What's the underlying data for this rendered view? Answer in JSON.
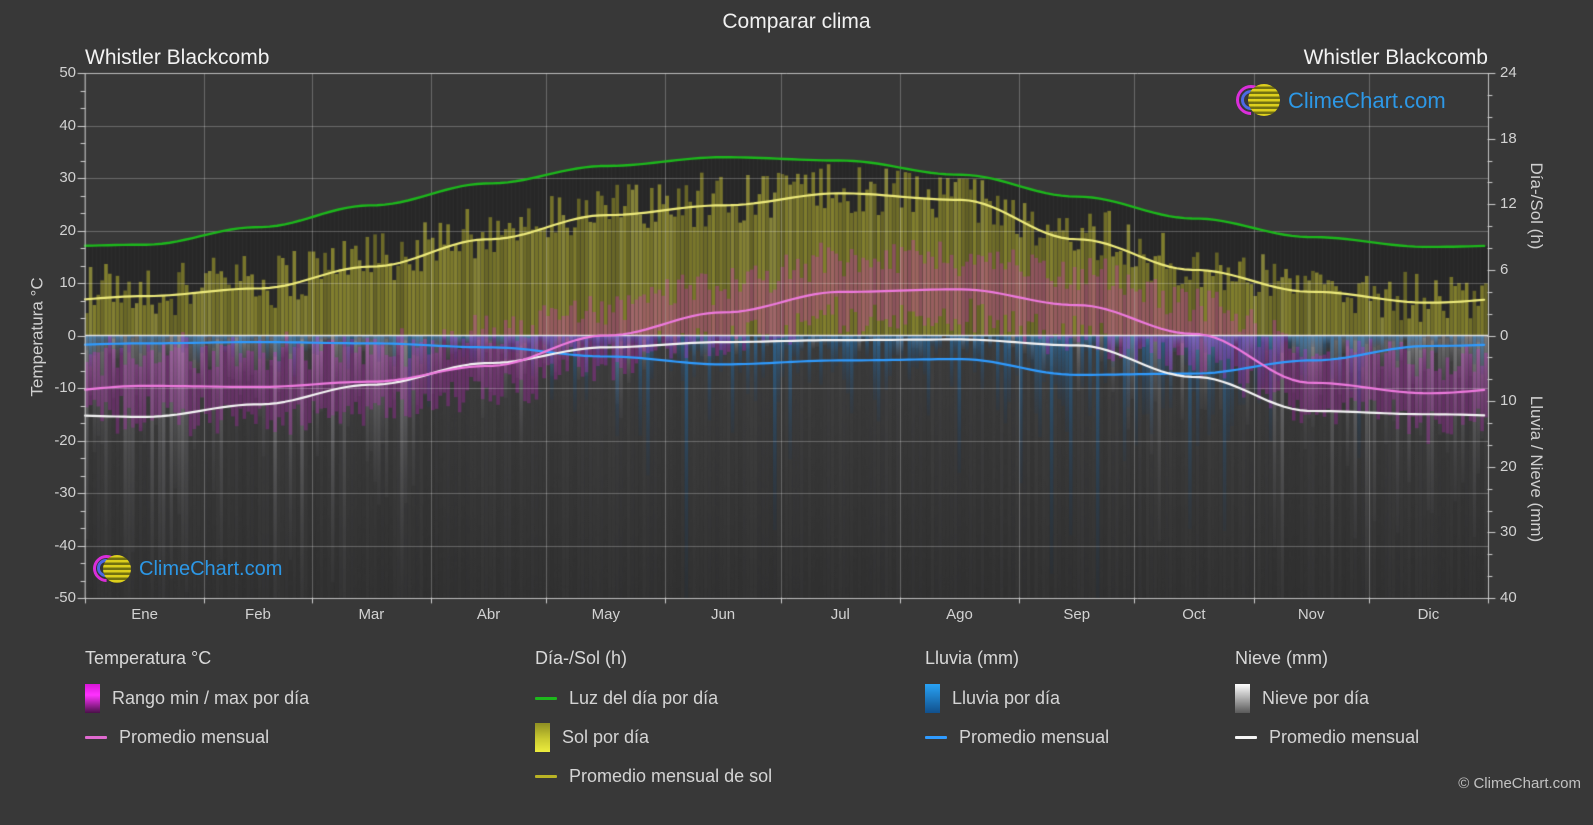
{
  "title": "Comparar clima",
  "station_left": "Whistler Blackcomb",
  "station_right": "Whistler Blackcomb",
  "watermark_text": "ClimeChart.com",
  "copyright": "© ClimeChart.com",
  "colors": {
    "background": "#383838",
    "watermark_blue": "#2d9df0",
    "daylight_line": "#1db81c",
    "sun_avg_line": "#eeeb7c",
    "legend_sun_line": "#b9b325",
    "temp_avg_line": "#ee7ade",
    "legend_temp_line": "#e06ad0",
    "rain_avg_line": "#2f9bff",
    "snow_avg_line": "#f5f5f5",
    "sun_bar": "#a0a030",
    "temp_bar": "#e81ce8",
    "rain_bar": "#1e82cd",
    "snow_bar": "#c8c8cd",
    "grid": "rgba(255,255,255,0.25)",
    "axis_text": "#d2d2d2"
  },
  "axes": {
    "left": {
      "label": "Temperatura °C",
      "ticks": [
        50,
        40,
        30,
        20,
        10,
        0,
        -10,
        -20,
        -30,
        -40,
        -50
      ],
      "range": [
        -50,
        50
      ]
    },
    "right_top": {
      "label": "Día-/Sol (h)",
      "ticks": [
        24,
        18,
        12,
        6,
        0
      ],
      "range": [
        0,
        24
      ]
    },
    "right_bottom": {
      "label": "Lluvia / Nieve (mm)",
      "ticks": [
        0,
        10,
        20,
        30,
        40
      ],
      "range": [
        0,
        40
      ]
    }
  },
  "legend": {
    "groups": [
      {
        "title": "Temperatura °C",
        "items": [
          {
            "swatch": "gradient-magenta",
            "label": "Rango min / max por día"
          },
          {
            "swatch": "line-magenta",
            "label": "Promedio mensual"
          }
        ]
      },
      {
        "title": "Día-/Sol (h)",
        "items": [
          {
            "swatch": "line-green",
            "label": "Luz del día por día"
          },
          {
            "swatch": "gradient-sun",
            "label": "Sol por día"
          },
          {
            "swatch": "line-olive",
            "label": "Promedio mensual de sol"
          }
        ]
      },
      {
        "title": "Lluvia (mm)",
        "items": [
          {
            "swatch": "gradient-rain",
            "label": "Lluvia por día"
          },
          {
            "swatch": "line-blue",
            "label": "Promedio mensual"
          }
        ]
      },
      {
        "title": "Nieve (mm)",
        "items": [
          {
            "swatch": "gradient-snow",
            "label": "Nieve por día"
          },
          {
            "swatch": "line-white",
            "label": "Promedio mensual"
          }
        ]
      }
    ]
  },
  "chart_data": {
    "type": "area",
    "title": "Comparar clima",
    "location": "Whistler Blackcomb",
    "months": [
      "Ene",
      "Feb",
      "Mar",
      "Abr",
      "May",
      "Jun",
      "Jul",
      "Ago",
      "Sep",
      "Oct",
      "Nov",
      "Dic"
    ],
    "month_days": [
      31,
      28,
      31,
      30,
      31,
      30,
      31,
      31,
      30,
      31,
      30,
      31
    ],
    "axis_ranges": {
      "temperature_c": [
        -50,
        50
      ],
      "day_sun_h": [
        0,
        24
      ],
      "rain_snow_mm": [
        0,
        40
      ],
      "mm_axis_inverted": true
    },
    "series": [
      {
        "name": "daylight_hours_daily",
        "unit": "h",
        "style": "green-line",
        "values": [
          8.3,
          9.9,
          11.9,
          13.9,
          15.5,
          16.3,
          16.0,
          14.7,
          12.7,
          10.7,
          9.0,
          8.1
        ]
      },
      {
        "name": "sunshine_monthly_avg",
        "unit": "h",
        "style": "yellow-line",
        "values": [
          3.6,
          4.3,
          6.3,
          8.8,
          11.0,
          11.9,
          13.0,
          12.4,
          8.8,
          6.0,
          4.0,
          3.0
        ]
      },
      {
        "name": "temp_monthly_avg",
        "unit": "°C",
        "style": "magenta-line",
        "values": [
          -9.6,
          -9.8,
          -8.8,
          -5.8,
          0.0,
          4.4,
          8.3,
          8.8,
          5.8,
          0.3,
          -9.0,
          -11.0
        ]
      },
      {
        "name": "temp_daily_min",
        "unit": "°C",
        "style": "magenta-band-low",
        "values": [
          -15.0,
          -16.0,
          -14.5,
          -11.0,
          -5.0,
          -0.5,
          3.5,
          3.5,
          0.0,
          -5.0,
          -13.5,
          -16.5
        ]
      },
      {
        "name": "temp_daily_max",
        "unit": "°C",
        "style": "magenta-band-high",
        "values": [
          -3.5,
          -3.5,
          -2.5,
          0.5,
          5.5,
          10.0,
          14.5,
          15.0,
          11.5,
          6.0,
          -2.5,
          -5.0
        ]
      },
      {
        "name": "rain_monthly_avg",
        "unit": "mm",
        "style": "blue-line",
        "values": [
          1.2,
          1.0,
          1.2,
          1.8,
          3.2,
          4.4,
          3.8,
          3.6,
          6.0,
          5.8,
          3.8,
          1.6
        ]
      },
      {
        "name": "snow_monthly_avg",
        "unit": "mm",
        "style": "white-line",
        "values": [
          12.4,
          10.5,
          7.5,
          4.2,
          1.8,
          1.0,
          0.7,
          0.6,
          1.5,
          6.3,
          11.5,
          12.0
        ]
      }
    ],
    "grid": true,
    "legend_position": "bottom"
  }
}
